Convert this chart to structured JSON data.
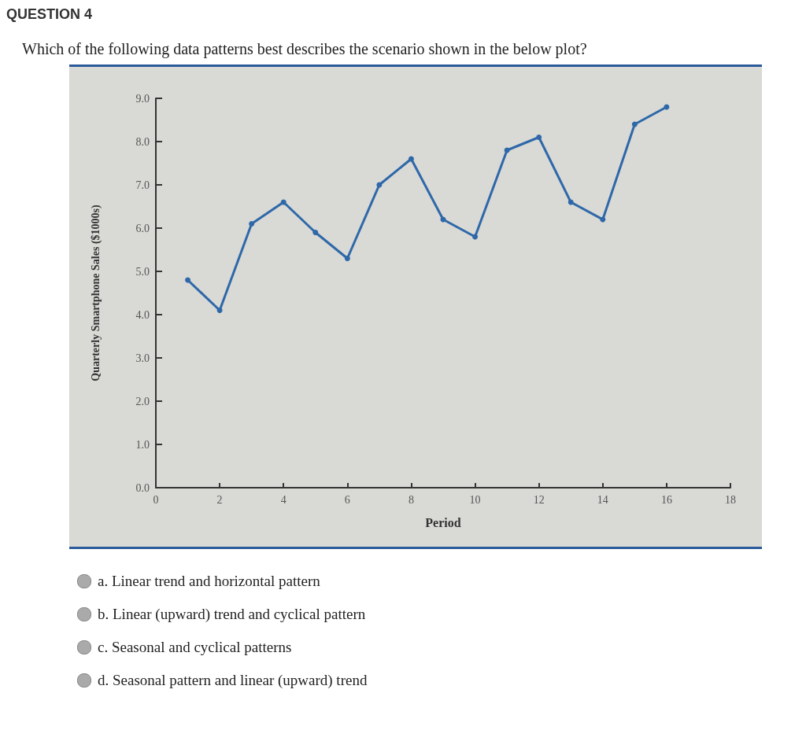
{
  "chart_data": {
    "type": "line",
    "subtitle": "QUESTION 4",
    "title": "Which of the following data patterns best describes the scenario shown in the below plot?",
    "xlabel": "Period",
    "ylabel": "Quarterly Smartphone Sales ($1000s)",
    "x": [
      1,
      2,
      3,
      4,
      5,
      6,
      7,
      8,
      9,
      10,
      11,
      12,
      13,
      14,
      15,
      16
    ],
    "series": [
      {
        "color": "#2e68a8",
        "values": [
          4.8,
          4.1,
          6.1,
          6.6,
          5.9,
          5.3,
          7.0,
          7.6,
          6.2,
          5.8,
          7.8,
          8.1,
          6.6,
          6.2,
          8.4,
          8.8
        ]
      }
    ],
    "xlim": [
      0,
      18
    ],
    "xticks": [
      0,
      2,
      4,
      6,
      8,
      10,
      12,
      14,
      16,
      18
    ],
    "ylim": [
      0,
      9
    ],
    "yticks": [
      {
        "value": 0,
        "label": "0.0"
      },
      {
        "value": 1,
        "label": "1.0"
      },
      {
        "value": 2,
        "label": "2.0"
      },
      {
        "value": 3,
        "label": "3.0"
      },
      {
        "value": 4,
        "label": "4.0"
      },
      {
        "value": 5,
        "label": "5.0"
      },
      {
        "value": 6,
        "label": "6.0"
      },
      {
        "value": 7,
        "label": "7.0"
      },
      {
        "value": 8,
        "label": "8.0"
      },
      {
        "value": 9,
        "label": "9.0"
      }
    ],
    "grid": false,
    "marker": "circle",
    "line_style": "solid",
    "annotations": [
      "a. Linear trend and horizontal pattern",
      "b. Linear (upward) trend and cyclical pattern",
      "c. Seasonal and cyclical patterns",
      "d. Seasonal pattern and linear (upward) trend"
    ]
  }
}
